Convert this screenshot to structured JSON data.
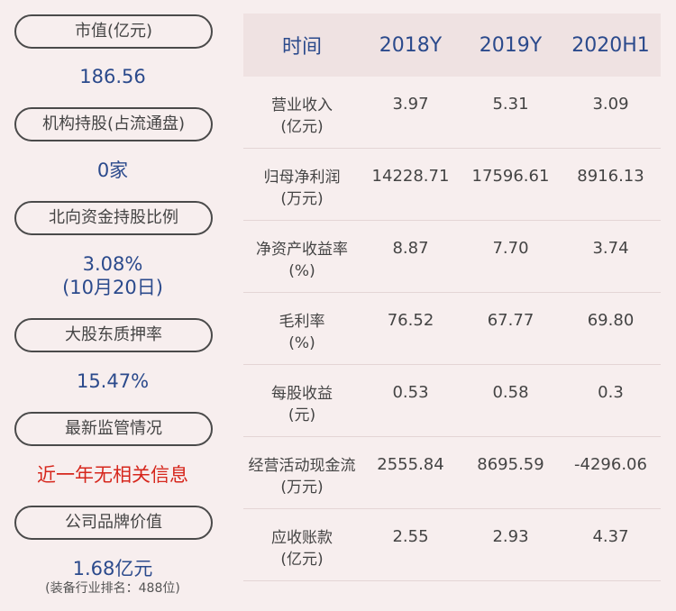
{
  "left": {
    "items": [
      {
        "label": "市值(亿元)",
        "value": "186.56"
      },
      {
        "label": "机构持股(占流通盘)",
        "value": "0家"
      },
      {
        "label": "北向资金持股比例",
        "value": "3.08%",
        "value2": "(10月20日)"
      },
      {
        "label": "大股东质押率",
        "value": "15.47%"
      },
      {
        "label": "最新监管情况",
        "value": "近一年无相关信息"
      },
      {
        "label": "公司品牌价值",
        "value": "1.68亿元",
        "sub": "(装备行业排名：488位)"
      }
    ]
  },
  "table": {
    "headers": [
      "时间",
      "2018Y",
      "2019Y",
      "2020H1"
    ],
    "rows": [
      {
        "label1": "营业收入",
        "label2": "(亿元)",
        "v": [
          "3.97",
          "5.31",
          "3.09"
        ]
      },
      {
        "label1": "归母净利润",
        "label2": "(万元)",
        "v": [
          "14228.71",
          "17596.61",
          "8916.13"
        ]
      },
      {
        "label1": "净资产收益率",
        "label2": "(%)",
        "v": [
          "8.87",
          "7.70",
          "3.74"
        ]
      },
      {
        "label1": "毛利率",
        "label2": "(%)",
        "v": [
          "76.52",
          "67.77",
          "69.80"
        ]
      },
      {
        "label1": "每股收益",
        "label2": "(元)",
        "v": [
          "0.53",
          "0.58",
          "0.3"
        ]
      },
      {
        "label1": "经营活动现金流",
        "label2": "(万元)",
        "v": [
          "2555.84",
          "8695.59",
          "-4296.06"
        ]
      },
      {
        "label1": "应收账款",
        "label2": "(亿元)",
        "v": [
          "2.55",
          "2.93",
          "4.37"
        ]
      }
    ]
  },
  "colors": {
    "background": "#f7eeee",
    "accent": "#2b4a8c",
    "alert": "#d6261c",
    "header_bg": "#efe2e2"
  }
}
